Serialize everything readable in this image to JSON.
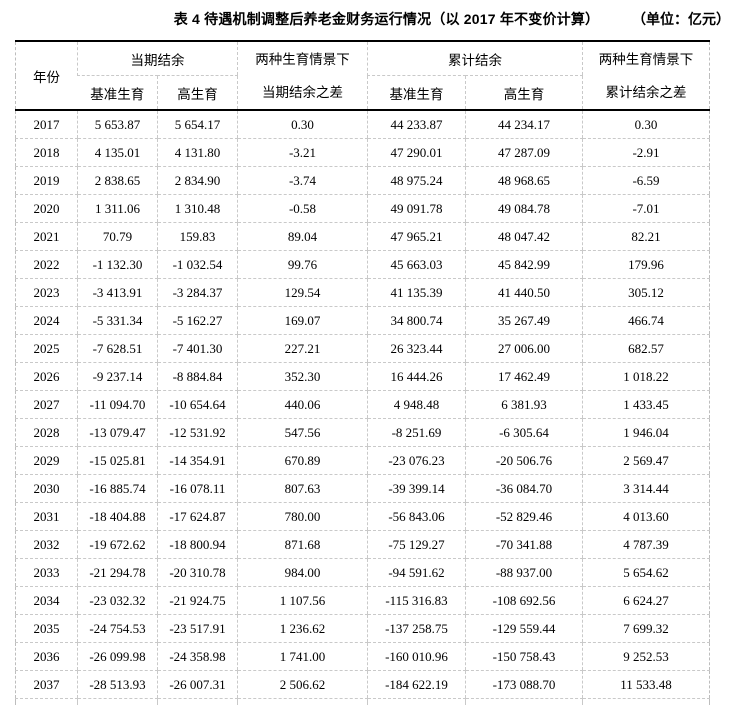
{
  "title": {
    "text": "表 4 待遇机制调整后养老金财务运行情况（以 2017 年不变价计算）",
    "unit": "（单位：亿元）"
  },
  "table": {
    "header": {
      "year": "年份",
      "current_balance": "当期结余",
      "current_diff_line1": "两种生育情景下",
      "current_diff_line2": "当期结余之差",
      "cumulative_balance": "累计结余",
      "cumulative_diff_line1": "两种生育情景下",
      "cumulative_diff_line2": "累计结余之差"
    },
    "subheaders": [
      "基准生育",
      "高生育",
      "基准生育",
      "高生育"
    ],
    "rows": [
      [
        "2017",
        "5 653.87",
        "5 654.17",
        "0.30",
        "44 233.87",
        "44 234.17",
        "0.30"
      ],
      [
        "2018",
        "4 135.01",
        "4 131.80",
        "-3.21",
        "47 290.01",
        "47 287.09",
        "-2.91"
      ],
      [
        "2019",
        "2 838.65",
        "2 834.90",
        "-3.74",
        "48 975.24",
        "48 968.65",
        "-6.59"
      ],
      [
        "2020",
        "1 311.06",
        "1 310.48",
        "-0.58",
        "49 091.78",
        "49 084.78",
        "-7.01"
      ],
      [
        "2021",
        "70.79",
        "159.83",
        "89.04",
        "47 965.21",
        "48 047.42",
        "82.21"
      ],
      [
        "2022",
        "-1 132.30",
        "-1 032.54",
        "99.76",
        "45 663.03",
        "45 842.99",
        "179.96"
      ],
      [
        "2023",
        "-3 413.91",
        "-3 284.37",
        "129.54",
        "41 135.39",
        "41 440.50",
        "305.12"
      ],
      [
        "2024",
        "-5 331.34",
        "-5 162.27",
        "169.07",
        "34 800.74",
        "35 267.49",
        "466.74"
      ],
      [
        "2025",
        "-7 628.51",
        "-7 401.30",
        "227.21",
        "26 323.44",
        "27 006.00",
        "682.57"
      ],
      [
        "2026",
        "-9 237.14",
        "-8 884.84",
        "352.30",
        "16 444.26",
        "17 462.49",
        "1 018.22"
      ],
      [
        "2027",
        "-11 094.70",
        "-10 654.64",
        "440.06",
        "4 948.48",
        "6 381.93",
        "1 433.45"
      ],
      [
        "2028",
        "-13 079.47",
        "-12 531.92",
        "547.56",
        "-8 251.69",
        "-6 305.64",
        "1 946.04"
      ],
      [
        "2029",
        "-15 025.81",
        "-14 354.91",
        "670.89",
        "-23 076.23",
        "-20 506.76",
        "2 569.47"
      ],
      [
        "2030",
        "-16 885.74",
        "-16 078.11",
        "807.63",
        "-39 399.14",
        "-36 084.70",
        "3 314.44"
      ],
      [
        "2031",
        "-18 404.88",
        "-17 624.87",
        "780.00",
        "-56 843.06",
        "-52 829.46",
        "4 013.60"
      ],
      [
        "2032",
        "-19 672.62",
        "-18 800.94",
        "871.68",
        "-75 129.27",
        "-70 341.88",
        "4 787.39"
      ],
      [
        "2033",
        "-21 294.78",
        "-20 310.78",
        "984.00",
        "-94 591.62",
        "-88 937.00",
        "5 654.62"
      ],
      [
        "2034",
        "-23 032.32",
        "-21 924.75",
        "1 107.56",
        "-115 316.83",
        "-108 692.56",
        "6 624.27"
      ],
      [
        "2035",
        "-24 754.53",
        "-23 517.91",
        "1 236.62",
        "-137 258.75",
        "-129 559.44",
        "7 699.32"
      ],
      [
        "2036",
        "-26 099.98",
        "-24 358.98",
        "1 741.00",
        "-160 010.96",
        "-150 758.43",
        "9 252.53"
      ],
      [
        "2037",
        "-28 513.93",
        "-26 007.31",
        "2 506.62",
        "-184 622.19",
        "-173 088.70",
        "11 533.48"
      ]
    ]
  },
  "colors": {
    "text": "#000000",
    "heavy_rule": "#000000",
    "gridline": "#c9c9c9",
    "background": "#ffffff"
  }
}
